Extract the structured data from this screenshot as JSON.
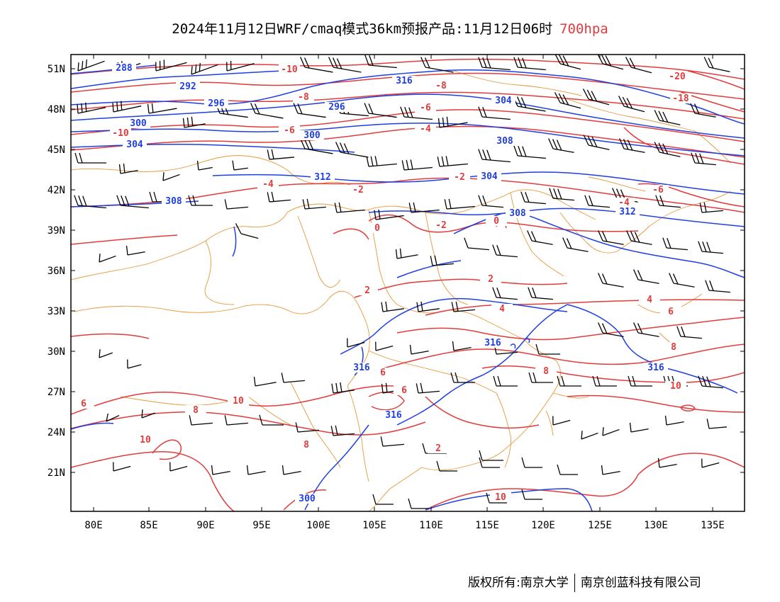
{
  "title": {
    "main": "2024年11月12日WRF/cmaq模式36km预报产品:11月12日06时",
    "level": "700hpa"
  },
  "footer": {
    "left": "版权所有:南京大学",
    "right": "南京创蓝科技有限公司"
  },
  "axes": {
    "lat_labels": [
      "51N",
      "48N",
      "45N",
      "42N",
      "39N",
      "36N",
      "33N",
      "30N",
      "27N",
      "24N",
      "21N"
    ],
    "lon_labels": [
      "80E",
      "85E",
      "90E",
      "95E",
      "100E",
      "105E",
      "110E",
      "115E",
      "120E",
      "125E",
      "130E",
      "135E"
    ]
  },
  "colors": {
    "temperature": "#e23b3b",
    "height": "#1f3fe0",
    "border": "#e8973a",
    "wind": "#000000"
  },
  "height_labels": [
    "288",
    "292",
    "296",
    "300",
    "304",
    "308",
    "312",
    "316",
    "296",
    "300",
    "304",
    "308",
    "312",
    "316",
    "316",
    "316",
    "300",
    "304",
    "308",
    "316"
  ],
  "temp_labels": [
    "-10",
    "-8",
    "-6",
    "-4",
    "-2",
    "0",
    "2",
    "4",
    "6",
    "8",
    "10",
    "-8",
    "-6",
    "-4",
    "-2",
    "-10",
    "-20",
    "-18",
    "-6",
    "-4",
    "2",
    "4",
    "6",
    "8",
    "10",
    "6",
    "8",
    "10",
    "-2",
    "0",
    "2",
    "6",
    "8",
    "10"
  ]
}
